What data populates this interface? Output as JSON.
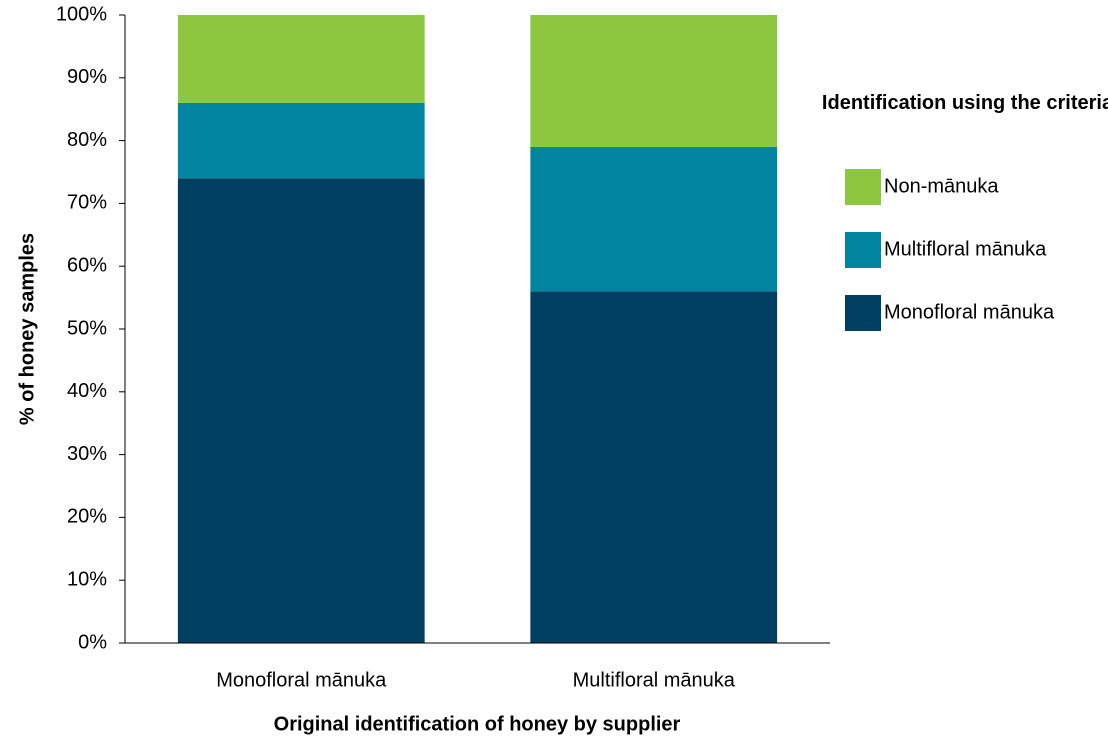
{
  "chart_data": {
    "type": "stacked_bar",
    "categories": [
      "Monofloral mānuka",
      "Multifloral mānuka"
    ],
    "series": [
      {
        "name": "Monofloral mānuka",
        "color": "#003f5f",
        "values": [
          74,
          56
        ]
      },
      {
        "name": "Multifloral mānuka",
        "color": "#00849f",
        "values": [
          12,
          23
        ]
      },
      {
        "name": "Non-mānuka",
        "color": "#8dc63f",
        "values": [
          14,
          21
        ]
      }
    ],
    "ylim": [
      0,
      100
    ],
    "yticks": [
      {
        "value": 0,
        "label": "0%"
      },
      {
        "value": 10,
        "label": "10%"
      },
      {
        "value": 20,
        "label": "20%"
      },
      {
        "value": 30,
        "label": "30%"
      },
      {
        "value": 40,
        "label": "40%"
      },
      {
        "value": 50,
        "label": "50%"
      },
      {
        "value": 60,
        "label": "60%"
      },
      {
        "value": 70,
        "label": "70%"
      },
      {
        "value": 80,
        "label": "80%"
      },
      {
        "value": 90,
        "label": "90%"
      },
      {
        "value": 100,
        "label": "100%"
      }
    ],
    "ylabel": "% of honey samples",
    "xlabel": "Original identification of honey by supplier",
    "legend_title": "Identification using the criteria",
    "legend_position": "right",
    "grid": false
  }
}
